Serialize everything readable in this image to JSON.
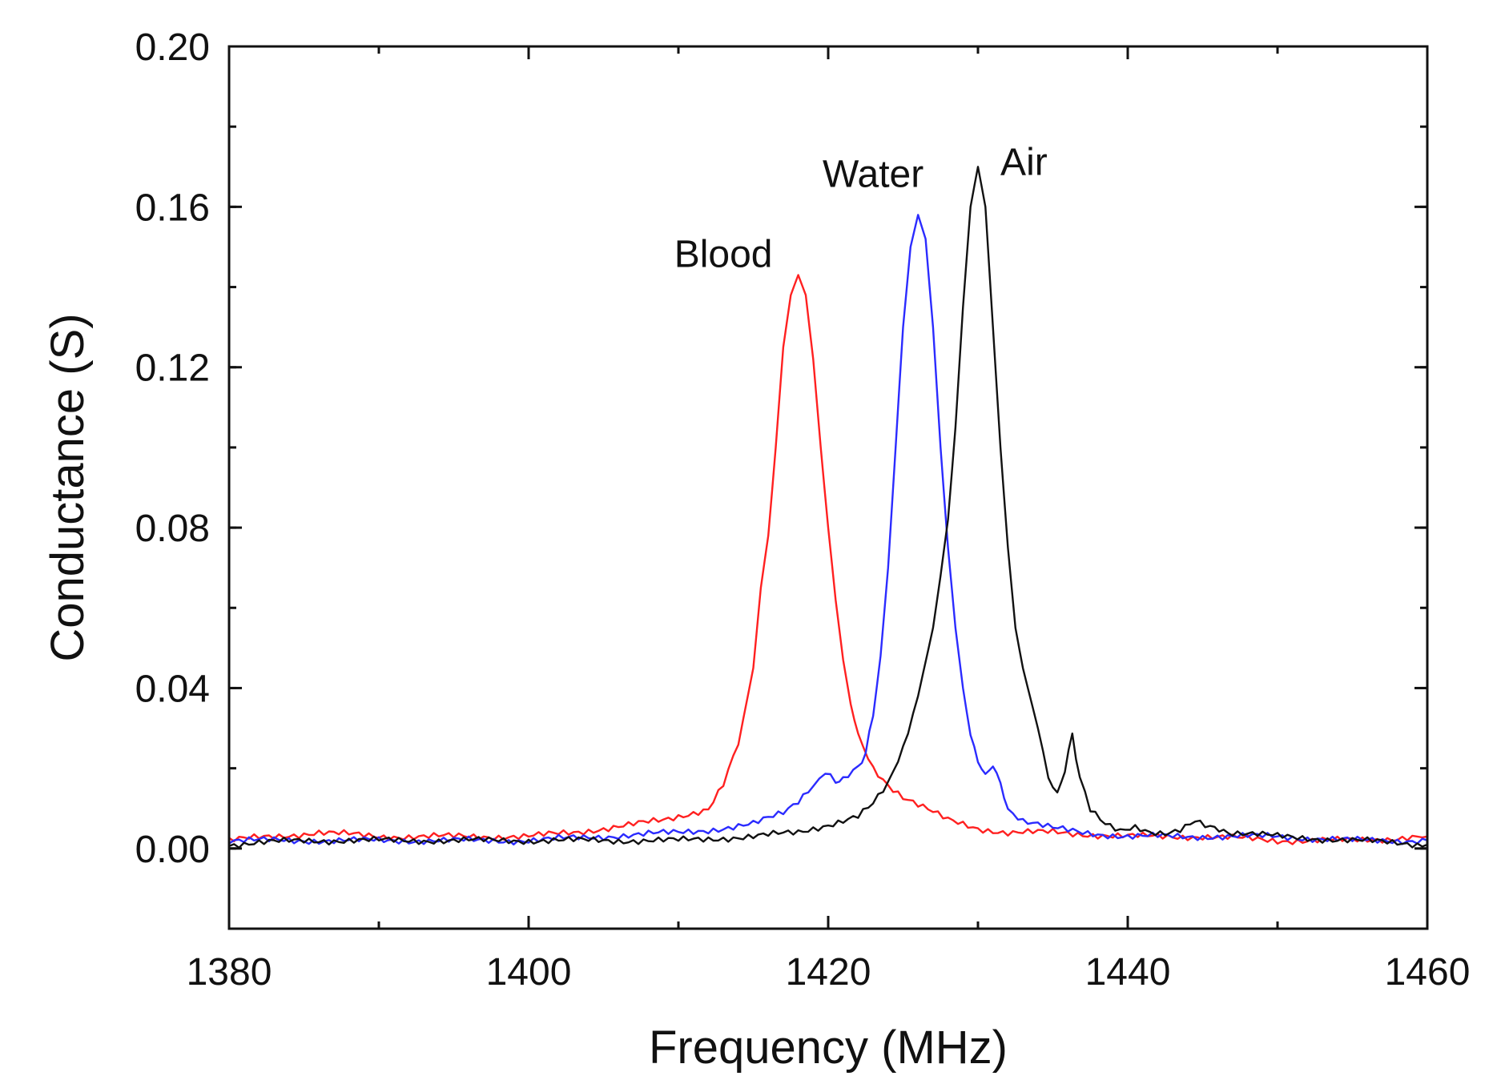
{
  "chart_data": {
    "type": "line",
    "xlabel": "Frequency (MHz)",
    "ylabel": "Conductance (S)",
    "xlim": [
      1380,
      1460
    ],
    "ylim": [
      -0.02,
      0.2
    ],
    "xticks": [
      1380,
      1400,
      1420,
      1440,
      1460
    ],
    "xtick_labels": [
      "1380",
      "1400",
      "1420",
      "1440",
      "1460"
    ],
    "yticks": [
      0.0,
      0.04,
      0.08,
      0.12,
      0.16,
      0.2
    ],
    "ytick_labels": [
      "0.00",
      "0.04",
      "0.08",
      "0.12",
      "0.16",
      "0.20"
    ],
    "grid": false,
    "series": [
      {
        "name": "Blood",
        "label": "Blood",
        "color": "#ff2020",
        "x": [
          1380,
          1383,
          1386,
          1390,
          1395,
          1400,
          1403,
          1405,
          1407,
          1409,
          1411,
          1412,
          1413,
          1414,
          1415,
          1415.5,
          1416,
          1416.5,
          1417,
          1417.5,
          1418,
          1418.5,
          1419,
          1419.5,
          1420,
          1420.5,
          1421,
          1421.5,
          1422,
          1423,
          1424,
          1425,
          1426,
          1427,
          1428,
          1429,
          1430,
          1432,
          1435,
          1440,
          1445,
          1450,
          1455,
          1460
        ],
        "y": [
          0.002,
          0.003,
          0.004,
          0.003,
          0.003,
          0.003,
          0.004,
          0.005,
          0.006,
          0.007,
          0.009,
          0.01,
          0.016,
          0.026,
          0.045,
          0.065,
          0.078,
          0.1,
          0.125,
          0.138,
          0.143,
          0.138,
          0.122,
          0.1,
          0.08,
          0.062,
          0.047,
          0.036,
          0.028,
          0.02,
          0.016,
          0.013,
          0.011,
          0.009,
          0.007,
          0.006,
          0.005,
          0.004,
          0.004,
          0.003,
          0.003,
          0.002,
          0.002,
          0.003
        ]
      },
      {
        "name": "Water",
        "label": "Water",
        "color": "#2b2bff",
        "x": [
          1380,
          1385,
          1390,
          1395,
          1400,
          1405,
          1410,
          1413,
          1415,
          1417,
          1418,
          1419,
          1419.8,
          1420.5,
          1421,
          1422,
          1422.5,
          1423,
          1423.5,
          1424,
          1424.5,
          1425,
          1425.5,
          1426,
          1426.5,
          1427,
          1427.5,
          1428,
          1428.5,
          1429,
          1429.5,
          1430,
          1430.5,
          1431,
          1431.5,
          1432,
          1433,
          1434,
          1435,
          1437,
          1440,
          1445,
          1450,
          1455,
          1460
        ],
        "y": [
          0.002,
          0.002,
          0.002,
          0.002,
          0.002,
          0.003,
          0.004,
          0.005,
          0.006,
          0.009,
          0.012,
          0.016,
          0.019,
          0.017,
          0.017,
          0.02,
          0.024,
          0.033,
          0.048,
          0.07,
          0.1,
          0.13,
          0.15,
          0.158,
          0.152,
          0.13,
          0.1,
          0.075,
          0.055,
          0.04,
          0.028,
          0.022,
          0.018,
          0.021,
          0.016,
          0.01,
          0.007,
          0.006,
          0.005,
          0.004,
          0.003,
          0.003,
          0.003,
          0.002,
          0.002
        ]
      },
      {
        "name": "Air",
        "label": "Air",
        "color": "#111111",
        "x": [
          1380,
          1385,
          1390,
          1395,
          1400,
          1405,
          1410,
          1415,
          1418,
          1420,
          1422,
          1423,
          1424,
          1425,
          1426,
          1427,
          1427.5,
          1428,
          1428.5,
          1429,
          1429.5,
          1430,
          1430.5,
          1431,
          1431.5,
          1432,
          1432.5,
          1433,
          1434,
          1434.7,
          1435.3,
          1435.8,
          1436.3,
          1436.8,
          1437.5,
          1438.5,
          1439.5,
          1440.5,
          1441.5,
          1442.5,
          1443.5,
          1444.5,
          1445.5,
          1447,
          1450,
          1455,
          1460
        ],
        "y": [
          0.001,
          0.002,
          0.002,
          0.002,
          0.002,
          0.002,
          0.002,
          0.003,
          0.004,
          0.006,
          0.008,
          0.011,
          0.016,
          0.025,
          0.038,
          0.055,
          0.068,
          0.082,
          0.105,
          0.135,
          0.16,
          0.17,
          0.16,
          0.13,
          0.1,
          0.075,
          0.055,
          0.045,
          0.03,
          0.018,
          0.013,
          0.02,
          0.028,
          0.018,
          0.01,
          0.006,
          0.004,
          0.005,
          0.004,
          0.004,
          0.005,
          0.007,
          0.005,
          0.004,
          0.003,
          0.002,
          0.001
        ]
      }
    ]
  }
}
